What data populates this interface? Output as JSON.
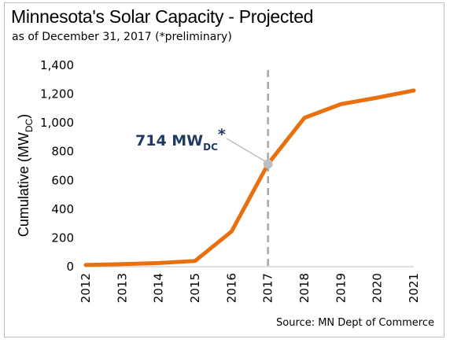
{
  "chart_data": {
    "type": "line",
    "title": "Minnesota's Solar Capacity - Projected",
    "subtitle": "as of December 31, 2017 (*preliminary)",
    "ylabel_main": "Cumulative (MW",
    "ylabel_sub": "DC",
    "ylabel_close": ")",
    "x": [
      "2012",
      "2013",
      "2014",
      "2015",
      "2016",
      "2017",
      "2018",
      "2019",
      "2020",
      "2021"
    ],
    "y": [
      12,
      18,
      25,
      40,
      245,
      714,
      1035,
      1130,
      1175,
      1225
    ],
    "y_ticks": [
      "0",
      "200",
      "400",
      "600",
      "800",
      "1,000",
      "1,200",
      "1,400"
    ],
    "ylim": [
      0,
      1400
    ],
    "line_color": "#e8700f",
    "marker_color": "#bfbfbf",
    "reference_line_x": "2017",
    "reference_line_color": "#a6a6a6",
    "callout": {
      "main": "714 MW",
      "sub": "DC",
      "suffix": "*",
      "color": "#1f3b64"
    },
    "grid": false,
    "legend": "none"
  },
  "source": "Source:  MN Dept of Commerce"
}
